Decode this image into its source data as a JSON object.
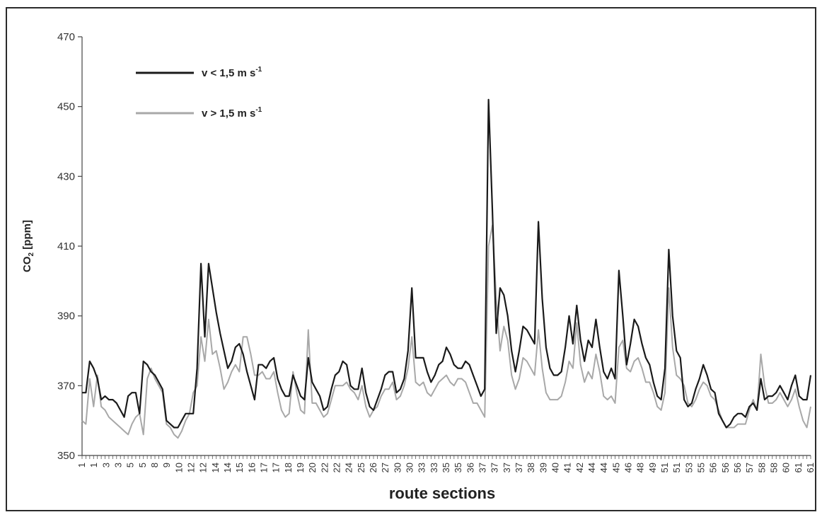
{
  "chart_data": {
    "type": "line",
    "title": "",
    "xlabel": "route sections",
    "ylabel": "CO2 [ppm]",
    "ylabel_main": "CO",
    "ylabel_sub": "2",
    "ylabel_rest": " [ppm]",
    "ylim": [
      350,
      470
    ],
    "y_ticks": [
      350,
      370,
      390,
      410,
      430,
      450,
      470
    ],
    "x_tick_labels": [
      "1",
      "1",
      "3",
      "3",
      "5",
      "5",
      "8",
      "9",
      "10",
      "12",
      "12",
      "14",
      "14",
      "15",
      "16",
      "17",
      "17",
      "18",
      "19",
      "20",
      "22",
      "22",
      "24",
      "25",
      "26",
      "27",
      "30",
      "30",
      "33",
      "33",
      "35",
      "35",
      "36",
      "37",
      "37",
      "37",
      "37",
      "38",
      "39",
      "40",
      "41",
      "42",
      "44",
      "44",
      "45",
      "46",
      "48",
      "49",
      "51",
      "51",
      "53",
      "55",
      "56",
      "56",
      "56",
      "57",
      "58",
      "58",
      "60",
      "61",
      "61"
    ],
    "grid": false,
    "legend_position": "top-left",
    "series": [
      {
        "name": "v < 1,5 m s-1",
        "legend_main": "v < 1,5 m s",
        "legend_sup": "-1",
        "color": "#1a1a1a",
        "values": [
          368,
          368,
          377,
          375,
          372,
          366,
          367,
          366,
          366,
          365,
          363,
          361,
          367,
          368,
          368,
          362,
          377,
          376,
          374,
          373,
          371,
          369,
          360,
          359,
          358,
          358,
          360,
          362,
          362,
          362,
          375,
          405,
          384,
          405,
          398,
          391,
          385,
          380,
          375,
          377,
          381,
          382,
          379,
          374,
          370,
          366,
          376,
          376,
          375,
          377,
          378,
          372,
          369,
          367,
          367,
          373,
          370,
          367,
          366,
          378,
          371,
          369,
          367,
          363,
          364,
          369,
          373,
          374,
          377,
          376,
          370,
          369,
          369,
          375,
          368,
          364,
          363,
          366,
          369,
          373,
          374,
          374,
          368,
          369,
          372,
          380,
          398,
          378,
          378,
          378,
          374,
          371,
          373,
          376,
          377,
          381,
          379,
          376,
          375,
          375,
          377,
          376,
          373,
          370,
          367,
          369,
          452,
          420,
          385,
          398,
          396,
          390,
          380,
          374,
          380,
          387,
          386,
          384,
          382,
          417,
          395,
          381,
          375,
          373,
          373,
          374,
          381,
          390,
          382,
          393,
          383,
          377,
          383,
          381,
          389,
          381,
          374,
          372,
          375,
          372,
          403,
          390,
          376,
          382,
          389,
          387,
          382,
          378,
          376,
          371,
          367,
          366,
          375,
          409,
          390,
          380,
          378,
          366,
          364,
          365,
          369,
          372,
          376,
          373,
          369,
          368,
          362,
          360,
          358,
          359,
          361,
          362,
          362,
          361,
          364,
          365,
          363,
          372,
          366,
          367,
          367,
          368,
          370,
          368,
          366,
          370,
          373,
          367,
          366,
          366,
          373
        ]
      },
      {
        "name": "v > 1,5 m s-1",
        "legend_main": "v > 1,5 m s",
        "legend_sup": "-1",
        "color": "#a8a8a8",
        "values": [
          360,
          359,
          372,
          364,
          373,
          364,
          363,
          361,
          360,
          359,
          358,
          357,
          356,
          359,
          361,
          362,
          356,
          372,
          375,
          372,
          370,
          368,
          359,
          358,
          356,
          355,
          357,
          360,
          362,
          368,
          370,
          384,
          377,
          389,
          379,
          380,
          375,
          369,
          371,
          374,
          376,
          374,
          384,
          384,
          379,
          373,
          373,
          374,
          372,
          372,
          374,
          368,
          363,
          361,
          362,
          374,
          368,
          363,
          362,
          386,
          365,
          365,
          363,
          361,
          362,
          366,
          370,
          370,
          370,
          371,
          369,
          368,
          366,
          370,
          364,
          361,
          363,
          364,
          367,
          369,
          369,
          371,
          366,
          367,
          370,
          375,
          384,
          371,
          370,
          371,
          368,
          367,
          369,
          371,
          372,
          373,
          371,
          370,
          372,
          372,
          371,
          368,
          365,
          365,
          363,
          361,
          410,
          416,
          395,
          380,
          387,
          383,
          373,
          369,
          372,
          378,
          377,
          375,
          373,
          386,
          375,
          368,
          366,
          366,
          366,
          367,
          371,
          377,
          375,
          388,
          376,
          371,
          374,
          372,
          379,
          374,
          367,
          366,
          367,
          365,
          381,
          383,
          375,
          374,
          377,
          378,
          375,
          371,
          371,
          368,
          364,
          363,
          368,
          398,
          381,
          373,
          372,
          370,
          365,
          364,
          366,
          369,
          371,
          370,
          367,
          366,
          363,
          360,
          358,
          358,
          358,
          359,
          359,
          359,
          363,
          366,
          363,
          379,
          370,
          365,
          365,
          366,
          368,
          366,
          364,
          366,
          369,
          364,
          360,
          358,
          364
        ]
      }
    ]
  }
}
